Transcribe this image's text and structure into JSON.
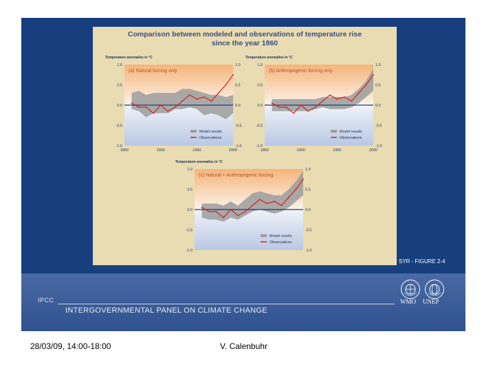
{
  "figure": {
    "title_line1": "Comparison between modeled and observations of temperature rise",
    "title_line2": "since the year 1860",
    "label": "SYR - FIGURE 2-4"
  },
  "colors": {
    "slide_bg": "#173f7e",
    "figure_bg": "#e9dcb3",
    "observations": "#cc2222",
    "model": "#9c9c9c",
    "zero_line": "#1a3c74",
    "plot_top": "#f5b47a",
    "plot_bottom": "#b9c8e4"
  },
  "chart_data": [
    {
      "type": "line",
      "panel": "a",
      "title": "(a) Natural forcing only",
      "ylabel": "Temperature anomalies in °C",
      "xlim": [
        1850,
        2000
      ],
      "ylim": [
        -1.0,
        1.0
      ],
      "yticks": [
        "1.0",
        "0.5",
        "0.0",
        "-0.5",
        "-1.0"
      ],
      "xticks": [
        "1850",
        "1900",
        "1950",
        "2000"
      ],
      "legend": [
        "Model results",
        "Observations"
      ],
      "x": [
        1860,
        1870,
        1880,
        1890,
        1900,
        1910,
        1920,
        1930,
        1940,
        1950,
        1960,
        1970,
        1980,
        1990,
        2000
      ],
      "series": [
        {
          "name": "Observations",
          "values": [
            0.05,
            -0.05,
            -0.05,
            -0.2,
            0.0,
            -0.15,
            -0.05,
            0.1,
            0.25,
            0.15,
            0.2,
            0.1,
            0.3,
            0.5,
            0.75
          ]
        },
        {
          "name": "Model results",
          "lower": [
            -0.1,
            -0.15,
            -0.3,
            -0.2,
            -0.2,
            -0.2,
            -0.1,
            -0.1,
            -0.05,
            -0.1,
            -0.25,
            -0.2,
            -0.25,
            -0.35,
            -0.2
          ],
          "upper": [
            0.3,
            0.35,
            0.25,
            0.3,
            0.3,
            0.3,
            0.3,
            0.4,
            0.4,
            0.35,
            0.3,
            0.25,
            0.25,
            0.2,
            0.25
          ]
        }
      ]
    },
    {
      "type": "line",
      "panel": "b",
      "title": "(b) Anthropogenic forcing only",
      "ylabel": "Temperature anomalies in °C",
      "xlim": [
        1850,
        2000
      ],
      "ylim": [
        -1.0,
        1.0
      ],
      "yticks": [
        "1.0",
        "0.5",
        "0.0",
        "-0.5",
        "-1.0"
      ],
      "xticks": [
        "1850",
        "1900",
        "1950",
        "2000"
      ],
      "legend": [
        "Model results",
        "Observations"
      ],
      "x": [
        1860,
        1870,
        1880,
        1890,
        1900,
        1910,
        1920,
        1930,
        1940,
        1950,
        1960,
        1970,
        1980,
        1990,
        2000
      ],
      "series": [
        {
          "name": "Observations",
          "values": [
            0.05,
            -0.05,
            -0.05,
            -0.2,
            0.0,
            -0.15,
            -0.05,
            0.1,
            0.25,
            0.15,
            0.2,
            0.1,
            0.3,
            0.5,
            0.75
          ]
        },
        {
          "name": "Model results",
          "lower": [
            -0.15,
            -0.15,
            -0.15,
            -0.15,
            -0.15,
            -0.15,
            -0.1,
            -0.05,
            -0.1,
            -0.1,
            -0.1,
            -0.05,
            0.05,
            0.2,
            0.35
          ],
          "upper": [
            0.15,
            0.15,
            0.15,
            0.15,
            0.15,
            0.15,
            0.15,
            0.2,
            0.2,
            0.2,
            0.2,
            0.25,
            0.4,
            0.6,
            0.9
          ]
        }
      ]
    },
    {
      "type": "line",
      "panel": "c",
      "title": "(c) Natural + Anthropogenic forcing",
      "ylabel": "Temperature anomalies in °C",
      "xlim": [
        1850,
        2000
      ],
      "ylim": [
        -1.0,
        1.0
      ],
      "yticks": [
        "1.0",
        "0.5",
        "0.0",
        "-0.5",
        "-1.0"
      ],
      "xticks": [],
      "legend": [
        "Model results",
        "Observations"
      ],
      "x": [
        1860,
        1870,
        1880,
        1890,
        1900,
        1910,
        1920,
        1930,
        1940,
        1950,
        1960,
        1970,
        1980,
        1990,
        2000
      ],
      "series": [
        {
          "name": "Observations",
          "values": [
            0.05,
            -0.05,
            -0.05,
            -0.2,
            0.0,
            -0.15,
            -0.05,
            0.1,
            0.25,
            0.15,
            0.2,
            0.1,
            0.3,
            0.5,
            0.75
          ]
        },
        {
          "name": "Model results",
          "lower": [
            -0.2,
            -0.25,
            -0.25,
            -0.3,
            -0.2,
            -0.25,
            -0.15,
            -0.05,
            0.0,
            -0.05,
            -0.1,
            -0.05,
            0.05,
            0.2,
            0.35
          ],
          "upper": [
            0.15,
            0.15,
            0.15,
            0.1,
            0.2,
            0.1,
            0.25,
            0.4,
            0.45,
            0.4,
            0.35,
            0.35,
            0.5,
            0.7,
            0.95
          ]
        }
      ]
    }
  ],
  "footer": {
    "org_abbrev": "IPCC",
    "org_name": "INTERGOVERNMENTAL PANEL ON CLIMATE CHANGE",
    "logo1": "WMO",
    "logo2": "UNEP"
  },
  "meta": {
    "date": "28/03/09, 14:00-18:00",
    "author": "V. Calenbuhr"
  }
}
